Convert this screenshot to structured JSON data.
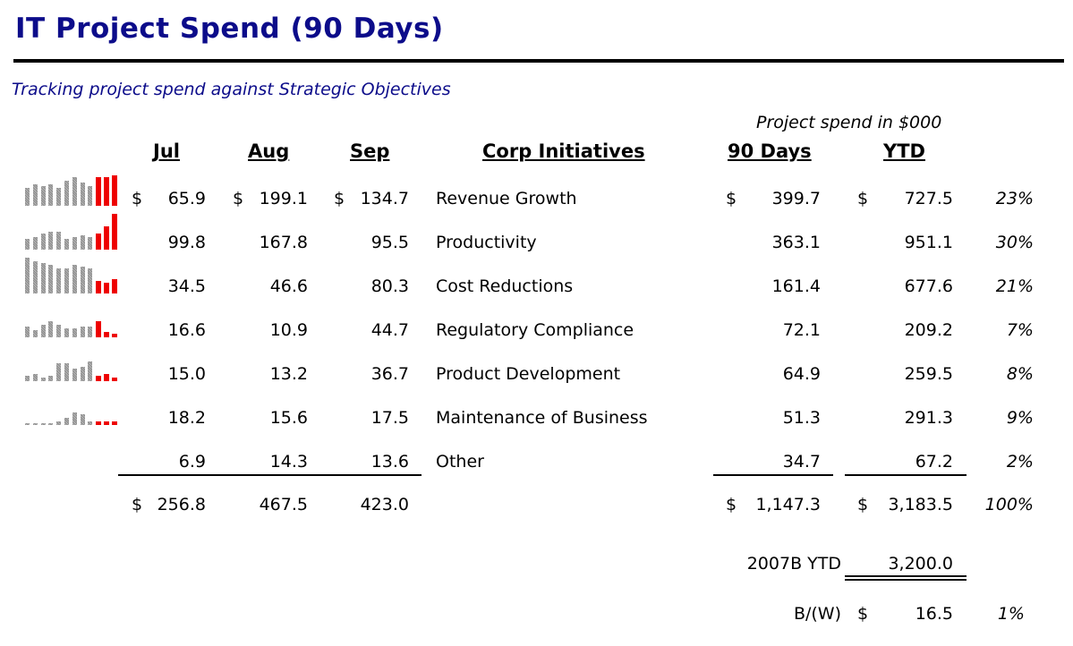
{
  "title": "IT Project Spend (90 Days)",
  "subtitle": "Tracking project spend against Strategic Objectives",
  "units_note": "Project spend in $000",
  "headers": {
    "jul": "Jul",
    "aug": "Aug",
    "sep": "Sep",
    "initiative": "Corp Initiatives",
    "days90": "90 Days",
    "ytd": "YTD"
  },
  "currency_symbol": "$",
  "colors": {
    "title": "#0c0c8a",
    "spark_history": "#8a8a8a",
    "spark_recent": "#ee0000"
  },
  "rows": [
    {
      "jul": "65.9",
      "aug": "199.1",
      "sep": "134.7",
      "name": "Revenue Growth",
      "d90": "399.7",
      "ytd": "727.5",
      "pct": "23%",
      "spark": [
        0.5,
        0.6,
        0.55,
        0.6,
        0.5,
        0.7,
        0.8,
        0.65,
        0.55,
        0.8,
        0.8,
        0.85
      ]
    },
    {
      "jul": "99.8",
      "aug": "167.8",
      "sep": "95.5",
      "name": "Productivity",
      "d90": "363.1",
      "ytd": "951.1",
      "pct": "30%",
      "spark": [
        0.3,
        0.35,
        0.45,
        0.5,
        0.5,
        0.3,
        0.35,
        0.4,
        0.35,
        0.45,
        0.65,
        1.0
      ]
    },
    {
      "jul": "34.5",
      "aug": "46.6",
      "sep": "80.3",
      "name": "Cost Reductions",
      "d90": "161.4",
      "ytd": "677.6",
      "pct": "21%",
      "spark": [
        1.0,
        0.9,
        0.85,
        0.8,
        0.7,
        0.7,
        0.8,
        0.75,
        0.7,
        0.35,
        0.3,
        0.4
      ]
    },
    {
      "jul": "16.6",
      "aug": "10.9",
      "sep": "44.7",
      "name": "Regulatory Compliance",
      "d90": "72.1",
      "ytd": "209.2",
      "pct": "7%",
      "spark": [
        0.3,
        0.2,
        0.35,
        0.45,
        0.35,
        0.25,
        0.25,
        0.3,
        0.3,
        0.45,
        0.15,
        0.1
      ]
    },
    {
      "jul": "15.0",
      "aug": "13.2",
      "sep": "36.7",
      "name": "Product Development",
      "d90": "64.9",
      "ytd": "259.5",
      "pct": "8%",
      "spark": [
        0.15,
        0.2,
        0.1,
        0.15,
        0.5,
        0.5,
        0.35,
        0.4,
        0.55,
        0.15,
        0.2,
        0.1
      ]
    },
    {
      "jul": "18.2",
      "aug": "15.6",
      "sep": "17.5",
      "name": "Maintenance of Business",
      "d90": "51.3",
      "ytd": "291.3",
      "pct": "9%",
      "spark": [
        0.05,
        0.05,
        0.05,
        0.05,
        0.1,
        0.2,
        0.35,
        0.3,
        0.1,
        0.1,
        0.1,
        0.1
      ]
    },
    {
      "jul": "6.9",
      "aug": "14.3",
      "sep": "13.6",
      "name": "Other",
      "d90": "34.7",
      "ytd": "67.2",
      "pct": "2%",
      "spark": []
    }
  ],
  "totals": {
    "jul": "256.8",
    "aug": "467.5",
    "sep": "423.0",
    "d90": "1,147.3",
    "ytd": "3,183.5",
    "pct": "100%"
  },
  "budget": {
    "label": "2007B YTD",
    "value": "3,200.0"
  },
  "variance": {
    "label": "B/(W)",
    "value": "16.5",
    "pct": "1%"
  }
}
